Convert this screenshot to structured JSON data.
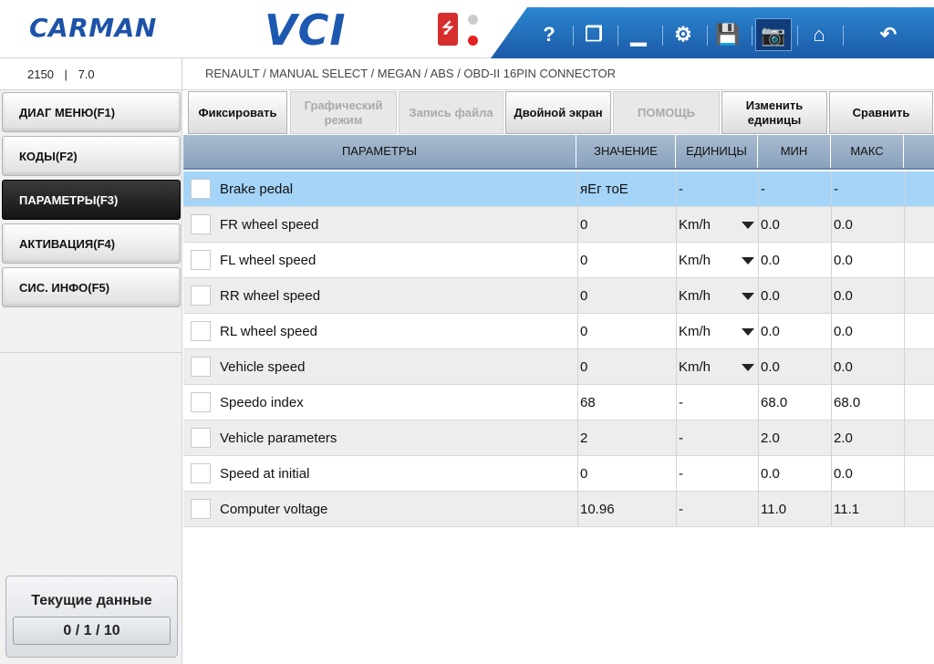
{
  "header": {
    "logo": "CARMAN",
    "product": "VCI",
    "usb_symbol": "⭍",
    "toolbar": [
      {
        "name": "help-icon",
        "glyph": "?"
      },
      {
        "name": "window-icon",
        "glyph": "❐"
      },
      {
        "name": "minimize-icon",
        "glyph": "▁"
      },
      {
        "name": "settings-icon",
        "glyph": "⚙"
      },
      {
        "name": "save-icon",
        "glyph": "💾"
      },
      {
        "name": "camera-icon",
        "glyph": "📷"
      },
      {
        "name": "home-icon",
        "glyph": "⌂"
      },
      {
        "name": "back-icon",
        "glyph": "↶"
      }
    ]
  },
  "info": {
    "id": "2150",
    "divider": "|",
    "version": "7.0",
    "breadcrumb": "RENAULT / MANUAL SELECT / MEGAN / ABS / OBD-II 16PIN CONNECTOR"
  },
  "nav": {
    "items": [
      {
        "label": "ДИАГ МЕНЮ(F1)"
      },
      {
        "label": "КОДЫ(F2)"
      },
      {
        "label": "ПАРАМЕТРЫ(F3)"
      },
      {
        "label": "АКТИВАЦИЯ(F4)"
      },
      {
        "label": "СИС. ИНФО(F5)"
      }
    ],
    "active_index": 2,
    "status_title": "Текущие данные",
    "status_count": "0 / 1 / 10"
  },
  "actions": [
    {
      "label": "Фиксировать",
      "enabled": true
    },
    {
      "label": "Графический режим",
      "enabled": false
    },
    {
      "label": "Запись файла",
      "enabled": false
    },
    {
      "label": "Двойной экран",
      "enabled": true
    },
    {
      "label": "ПОМОЩЬ",
      "enabled": false
    },
    {
      "label": "Изменить единицы",
      "enabled": true
    },
    {
      "label": "Сравнить",
      "enabled": true
    }
  ],
  "table": {
    "headers": {
      "param": "ПАРАМЕТРЫ",
      "value": "ЗНАЧЕНИЕ",
      "units": "ЕДИНИЦЫ",
      "min": "МИН",
      "max": "МАКС"
    },
    "rows": [
      {
        "name": "Brake pedal",
        "value": "яЕг тоЕ",
        "unit": "-",
        "min": "-",
        "max": "-",
        "dropdown": false
      },
      {
        "name": "FR wheel speed",
        "value": "0",
        "unit": "Km/h",
        "min": "0.0",
        "max": "0.0",
        "dropdown": true
      },
      {
        "name": "FL wheel speed",
        "value": "0",
        "unit": "Km/h",
        "min": "0.0",
        "max": "0.0",
        "dropdown": true
      },
      {
        "name": "RR wheel speed",
        "value": "0",
        "unit": "Km/h",
        "min": "0.0",
        "max": "0.0",
        "dropdown": true
      },
      {
        "name": "RL wheel speed",
        "value": "0",
        "unit": "Km/h",
        "min": "0.0",
        "max": "0.0",
        "dropdown": true
      },
      {
        "name": "Vehicle speed",
        "value": "0",
        "unit": "Km/h",
        "min": "0.0",
        "max": "0.0",
        "dropdown": true
      },
      {
        "name": "Speedo index",
        "value": "68",
        "unit": "-",
        "min": "68.0",
        "max": "68.0",
        "dropdown": false
      },
      {
        "name": "Vehicle parameters",
        "value": "2",
        "unit": "-",
        "min": "2.0",
        "max": "2.0",
        "dropdown": false
      },
      {
        "name": "Speed at initial",
        "value": "0",
        "unit": "-",
        "min": "0.0",
        "max": "0.0",
        "dropdown": false
      },
      {
        "name": "Computer voltage",
        "value": "10.96",
        "unit": "-",
        "min": "11.0",
        "max": "11.1",
        "dropdown": false
      }
    ],
    "selected_index": 0
  },
  "colors": {
    "brand_blue": "#1d58b0",
    "toolbar_blue": "#1b5aa7",
    "selected_row": "#a4d4f8",
    "header_bg": "#8aa2bd"
  }
}
